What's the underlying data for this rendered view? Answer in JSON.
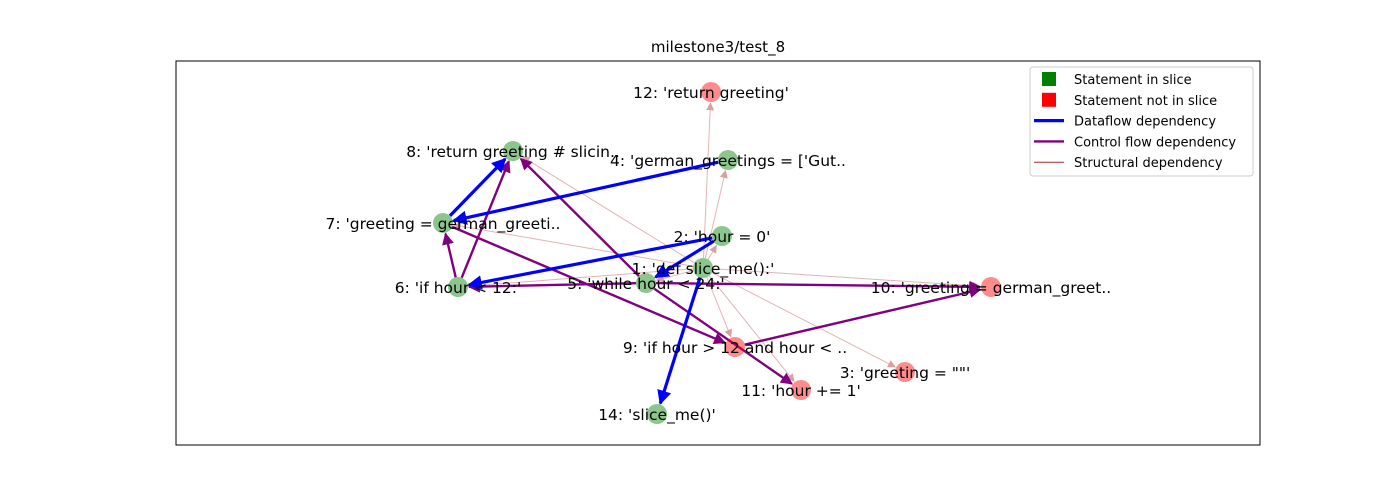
{
  "title": "milestone3/test_8",
  "colors": {
    "in_slice": "#008000",
    "not_in_slice": "#ff0000",
    "dataflow": "#0000ff",
    "control": "#800080",
    "structural": "#a52a2a"
  },
  "legend": [
    {
      "kind": "square",
      "color_key": "in_slice",
      "label": "Statement in slice"
    },
    {
      "kind": "square",
      "color_key": "not_in_slice",
      "label": "Statement not in slice"
    },
    {
      "kind": "line",
      "color_key": "dataflow",
      "label": "Dataflow dependency"
    },
    {
      "kind": "line",
      "color_key": "control",
      "label": "Control flow dependency"
    },
    {
      "kind": "line",
      "color_key": "structural",
      "label": "Structural dependency"
    }
  ],
  "nodes": [
    {
      "id": 1,
      "label": "1: 'def slice_me():'",
      "in_slice": true
    },
    {
      "id": 2,
      "label": "2: 'hour = 0'",
      "in_slice": true
    },
    {
      "id": 3,
      "label": "3: 'greeting = \"\"'",
      "in_slice": false
    },
    {
      "id": 4,
      "label": "4: 'german_greetings = ['Gut..",
      "in_slice": true
    },
    {
      "id": 5,
      "label": "5: 'while hour < 24:'",
      "in_slice": true
    },
    {
      "id": 6,
      "label": "6: 'if hour < 12:'",
      "in_slice": true
    },
    {
      "id": 7,
      "label": "7: 'greeting = german_greeti..",
      "in_slice": true
    },
    {
      "id": 8,
      "label": "8: 'return greeting # slicin..",
      "in_slice": true
    },
    {
      "id": 9,
      "label": "9: 'if hour > 12 and hour < ..",
      "in_slice": false
    },
    {
      "id": 10,
      "label": "10: 'greeting = german_greet..",
      "in_slice": false
    },
    {
      "id": 11,
      "label": "11: 'hour += 1'",
      "in_slice": false
    },
    {
      "id": 12,
      "label": "12: 'return greeting'",
      "in_slice": false
    },
    {
      "id": 14,
      "label": "14: 'slice_me()'",
      "in_slice": true
    }
  ],
  "edges": [
    {
      "from": 1,
      "to": 2,
      "type": "structural"
    },
    {
      "from": 1,
      "to": 3,
      "type": "structural"
    },
    {
      "from": 1,
      "to": 4,
      "type": "structural"
    },
    {
      "from": 1,
      "to": 5,
      "type": "structural"
    },
    {
      "from": 1,
      "to": 6,
      "type": "structural"
    },
    {
      "from": 1,
      "to": 7,
      "type": "structural"
    },
    {
      "from": 1,
      "to": 8,
      "type": "structural"
    },
    {
      "from": 1,
      "to": 9,
      "type": "structural"
    },
    {
      "from": 1,
      "to": 10,
      "type": "structural"
    },
    {
      "from": 1,
      "to": 11,
      "type": "structural"
    },
    {
      "from": 1,
      "to": 12,
      "type": "structural"
    },
    {
      "from": 2,
      "to": 6,
      "type": "dataflow"
    },
    {
      "from": 2,
      "to": 5,
      "type": "dataflow"
    },
    {
      "from": 4,
      "to": 7,
      "type": "dataflow"
    },
    {
      "from": 7,
      "to": 8,
      "type": "dataflow"
    },
    {
      "from": 1,
      "to": 14,
      "type": "dataflow"
    },
    {
      "from": 5,
      "to": 6,
      "type": "control"
    },
    {
      "from": 5,
      "to": 10,
      "type": "control"
    },
    {
      "from": 5,
      "to": 8,
      "type": "control"
    },
    {
      "from": 5,
      "to": 11,
      "type": "control"
    },
    {
      "from": 6,
      "to": 7,
      "type": "control"
    },
    {
      "from": 6,
      "to": 8,
      "type": "control"
    },
    {
      "from": 7,
      "to": 9,
      "type": "control"
    },
    {
      "from": 9,
      "to": 10,
      "type": "control"
    }
  ]
}
